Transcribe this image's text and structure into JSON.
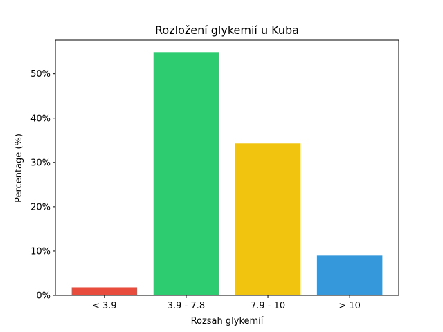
{
  "chart_data": {
    "type": "bar",
    "title": "Rozložení glykemií u  Kuba",
    "xlabel": "Rozsah glykemií",
    "ylabel": "Percentage (%)",
    "categories": [
      "< 3.9",
      "3.9 - 7.8",
      "7.9 - 10",
      "> 10"
    ],
    "values": [
      1.8,
      54.9,
      34.3,
      9.0
    ],
    "colors": [
      "#e74c3c",
      "#2ecc71",
      "#f1c40f",
      "#3498db"
    ],
    "ylim": [
      0,
      57.6
    ],
    "yticks": [
      0,
      10,
      20,
      30,
      40,
      50
    ],
    "ytick_labels": [
      "0%",
      "10%",
      "20%",
      "30%",
      "40%",
      "50%"
    ],
    "grid": false,
    "legend": "none"
  }
}
